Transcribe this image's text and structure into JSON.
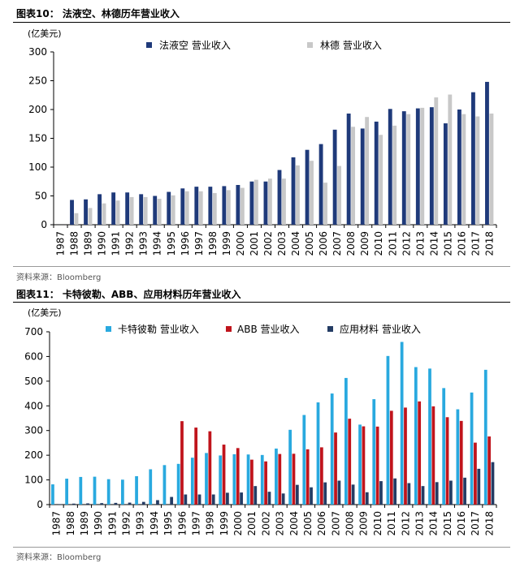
{
  "figures": [
    {
      "title": "图表10：  法液空、林德历年营业收入",
      "source": "资料来源：Bloomberg"
    },
    {
      "title": "图表11：  卡特彼勒、ABB、应用材料历年营业收入",
      "source": "资料来源：Bloomberg"
    }
  ],
  "chart_data": [
    {
      "type": "bar",
      "title": "法液空、林德历年营业收入",
      "ylabel": "(亿美元)",
      "xlabel": "",
      "ylim": [
        0,
        300
      ],
      "yticks": [
        0,
        50,
        100,
        150,
        200,
        250,
        300
      ],
      "legend_position": "top",
      "categories": [
        "1987",
        "1988",
        "1989",
        "1990",
        "1991",
        "1992",
        "1993",
        "1994",
        "1995",
        "1996",
        "1997",
        "1998",
        "1999",
        "2000",
        "2001",
        "2002",
        "2003",
        "2004",
        "2005",
        "2006",
        "2007",
        "2008",
        "2009",
        "2010",
        "2011",
        "2012",
        "2013",
        "2014",
        "2015",
        "2016",
        "2017",
        "2018"
      ],
      "series": [
        {
          "name": "法液空 营业收入",
          "color": "#1f3a7a",
          "values": [
            null,
            43,
            44,
            53,
            56,
            56,
            53,
            50,
            57,
            63,
            66,
            66,
            67,
            69,
            75,
            75,
            95,
            117,
            130,
            140,
            165,
            193,
            167,
            179,
            201,
            197,
            202,
            204,
            176,
            200,
            230,
            248
          ]
        },
        {
          "name": "林德 营业收入",
          "color": "#c8c8c8",
          "values": [
            null,
            20,
            29,
            37,
            42,
            48,
            48,
            45,
            51,
            58,
            58,
            55,
            60,
            64,
            78,
            80,
            80,
            103,
            111,
            73,
            102,
            170,
            187,
            156,
            172,
            192,
            203,
            221,
            226,
            192,
            188,
            193
          ]
        }
      ]
    },
    {
      "type": "bar",
      "title": "卡特彼勒、ABB、应用材料历年营业收入",
      "ylabel": "(亿美元)",
      "xlabel": "",
      "ylim": [
        0,
        700
      ],
      "yticks": [
        0,
        100,
        200,
        300,
        400,
        500,
        600,
        700
      ],
      "legend_position": "top",
      "categories": [
        "1987",
        "1988",
        "1989",
        "1990",
        "1991",
        "1992",
        "1993",
        "1994",
        "1995",
        "1996",
        "1997",
        "1998",
        "1999",
        "2000",
        "2001",
        "2002",
        "2003",
        "2004",
        "2005",
        "2006",
        "2007",
        "2008",
        "2009",
        "2010",
        "2011",
        "2012",
        "2013",
        "2014",
        "2015",
        "2016",
        "2017",
        "2018"
      ],
      "series": [
        {
          "name": "卡特彼勒 营业收入",
          "color": "#29a9df",
          "values": [
            82,
            105,
            112,
            113,
            103,
            101,
            115,
            143,
            160,
            165,
            190,
            209,
            199,
            204,
            203,
            201,
            227,
            303,
            363,
            414,
            450,
            513,
            324,
            427,
            602,
            659,
            557,
            551,
            472,
            386,
            454,
            546
          ]
        },
        {
          "name": "ABB 营业收入",
          "color": "#c0141c",
          "values": [
            null,
            null,
            null,
            null,
            null,
            null,
            null,
            null,
            null,
            338,
            312,
            297,
            243,
            229,
            182,
            175,
            205,
            206,
            224,
            232,
            292,
            348,
            317,
            316,
            380,
            393,
            418,
            398,
            354,
            339,
            251,
            276
          ]
        },
        {
          "name": "应用材料 营业收入",
          "color": "#243c64",
          "values": [
            2,
            4,
            5,
            6,
            7,
            8,
            11,
            18,
            31,
            41,
            41,
            41,
            48,
            49,
            75,
            52,
            45,
            80,
            70,
            90,
            97,
            81,
            50,
            95,
            106,
            87,
            75,
            91,
            97,
            109,
            145,
            172
          ]
        }
      ]
    }
  ]
}
